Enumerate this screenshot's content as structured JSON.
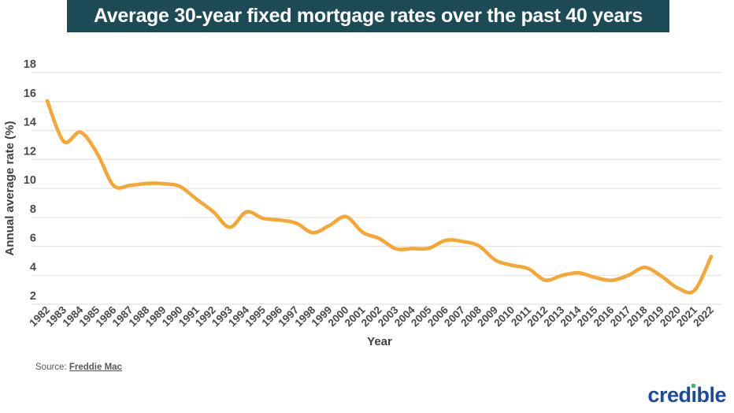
{
  "header": {
    "title": "Average 30-year fixed mortgage rates over the past 40 years"
  },
  "chart_data": {
    "type": "line",
    "title": "Average 30-year fixed mortgage rates over the past 40 years",
    "xlabel": "Year",
    "ylabel": "Annual average rate (%)",
    "x": [
      1982,
      1983,
      1984,
      1985,
      1986,
      1987,
      1988,
      1989,
      1990,
      1991,
      1992,
      1993,
      1994,
      1995,
      1996,
      1997,
      1998,
      1999,
      2000,
      2001,
      2002,
      2003,
      2004,
      2005,
      2006,
      2007,
      2008,
      2009,
      2010,
      2011,
      2012,
      2013,
      2014,
      2015,
      2016,
      2017,
      2018,
      2019,
      2020,
      2021,
      2022
    ],
    "series": [
      {
        "name": "30-year fixed mortgage rate (%)",
        "values": [
          16.04,
          13.24,
          13.88,
          12.43,
          10.19,
          10.21,
          10.34,
          10.32,
          10.13,
          9.25,
          8.39,
          7.31,
          8.38,
          7.93,
          7.81,
          7.6,
          6.94,
          7.44,
          8.05,
          6.97,
          6.54,
          5.83,
          5.84,
          5.87,
          6.41,
          6.34,
          6.03,
          5.04,
          4.69,
          4.45,
          3.66,
          3.98,
          4.17,
          3.85,
          3.65,
          3.99,
          4.54,
          3.94,
          3.11,
          2.96,
          5.3
        ]
      }
    ],
    "ylim": [
      2,
      18
    ],
    "yticks": [
      2,
      4,
      6,
      8,
      10,
      12,
      14,
      16,
      18
    ],
    "grid": "horizontal",
    "legend": false,
    "line_color": "#F6A733",
    "grid_color": "#e3e3e3",
    "tick_color": "#4a4a4a",
    "axis_title_color": "#414042"
  },
  "footer": {
    "source_prefix": "Source:",
    "source_link": "Freddie Mac",
    "brand_pre": "cred",
    "brand_i": "ı",
    "brand_post": "ble"
  },
  "colors": {
    "banner_bg": "#1d4b55",
    "banner_text": "#ffffff",
    "brand_blue": "#1b4a9e",
    "brand_green": "#3cb878"
  }
}
